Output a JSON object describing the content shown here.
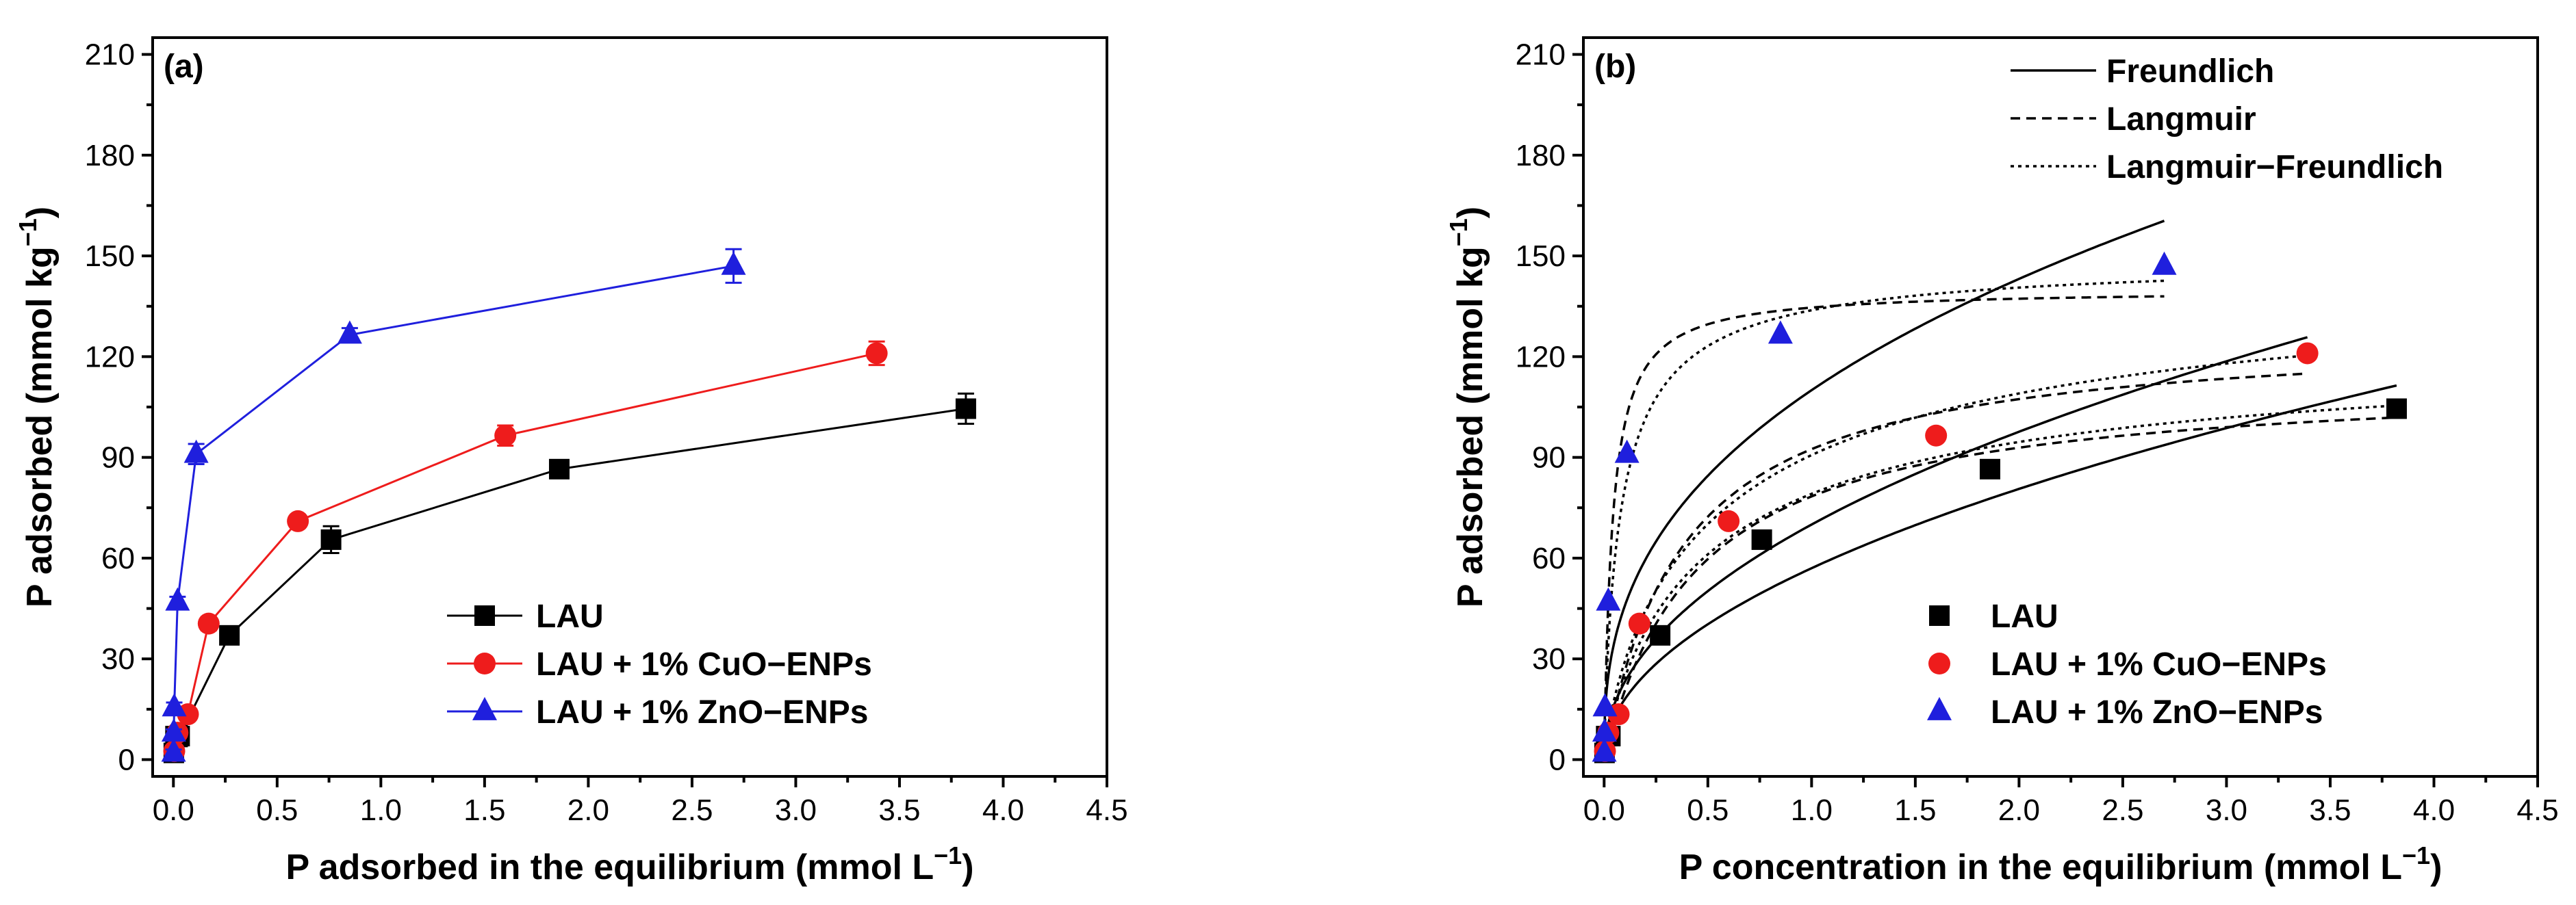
{
  "colors": {
    "LAU": "#000000",
    "CuO": "#ee1c1c",
    "ZnO": "#1f1fdd"
  },
  "chart_data": [
    {
      "type": "line",
      "panel_label": "(a)",
      "xlabel": "P adsorbed in the equilibrium (mmol L",
      "xlabel_sup": "−1",
      "xlabel_end": ")",
      "ylabel": "P adsorbed (mmol kg",
      "ylabel_sup": "−1",
      "ylabel_end": ")",
      "xlim": [
        -0.1,
        4.5
      ],
      "ylim": [
        -5,
        215
      ],
      "xticks": [
        "0.0",
        "0.5",
        "1.0",
        "1.5",
        "2.0",
        "2.5",
        "3.0",
        "3.5",
        "4.0",
        "4.5"
      ],
      "yticks": [
        "0",
        "30",
        "60",
        "90",
        "120",
        "150",
        "180",
        "210"
      ],
      "legend_position": "bottom-right",
      "series": [
        {
          "name": "LAU",
          "key": "LAU",
          "marker": "square",
          "x": [
            0.002,
            0.01,
            0.03,
            0.27,
            0.76,
            1.86,
            3.82
          ],
          "y": [
            2,
            7,
            7,
            37,
            65.5,
            86.5,
            104.5
          ],
          "err": [
            1,
            1.5,
            3,
            2,
            4,
            2.5,
            4.5
          ]
        },
        {
          "name": "LAU + 1% CuO−ENPs",
          "key": "CuO",
          "marker": "circle",
          "x": [
            0.004,
            0.02,
            0.07,
            0.17,
            0.6,
            1.6,
            3.39
          ],
          "y": [
            2.5,
            8,
            13.5,
            40.5,
            71,
            96.5,
            121
          ],
          "err": [
            1,
            1.5,
            1.5,
            2,
            1.5,
            3,
            3.5
          ]
        },
        {
          "name": "LAU + 1% ZnO−ENPs",
          "key": "ZnO",
          "marker": "triangle",
          "x": [
            0.001,
            0.002,
            0.004,
            0.02,
            0.11,
            0.85,
            2.7
          ],
          "y": [
            2,
            8,
            15.5,
            47,
            91,
            126.5,
            147
          ],
          "err": [
            1,
            1,
            1.5,
            1.5,
            3,
            2,
            5
          ]
        }
      ]
    },
    {
      "type": "scatter",
      "panel_label": "(b)",
      "xlabel": "P concentration in the equilibrium (mmol L",
      "xlabel_sup": "−1",
      "xlabel_end": ")",
      "ylabel": "P adsorbed (mmol kg",
      "ylabel_sup": "−1",
      "ylabel_end": ")",
      "xlim": [
        -0.1,
        4.5
      ],
      "ylim": [
        -5,
        215
      ],
      "xticks": [
        "0.0",
        "0.5",
        "1.0",
        "1.5",
        "2.0",
        "2.5",
        "3.0",
        "3.5",
        "4.0",
        "4.5"
      ],
      "yticks": [
        "0",
        "30",
        "60",
        "90",
        "120",
        "150",
        "180",
        "210"
      ],
      "legend_position": "bottom-right",
      "fit_legend_position": "top-right",
      "series": [
        {
          "name": "LAU",
          "key": "LAU",
          "marker": "square",
          "x": [
            0.002,
            0.01,
            0.03,
            0.27,
            0.76,
            1.86,
            3.82
          ],
          "y": [
            2,
            7,
            7,
            37,
            65.5,
            86.5,
            104.5
          ]
        },
        {
          "name": "LAU + 1% CuO−ENPs",
          "key": "CuO",
          "marker": "circle",
          "x": [
            0.004,
            0.02,
            0.07,
            0.17,
            0.6,
            1.6,
            3.39
          ],
          "y": [
            2.5,
            8,
            13.5,
            40.5,
            71,
            96.5,
            121
          ]
        },
        {
          "name": "LAU + 1% ZnO−ENPs",
          "key": "ZnO",
          "marker": "triangle",
          "x": [
            0.001,
            0.002,
            0.004,
            0.02,
            0.11,
            0.85,
            2.7
          ],
          "y": [
            2,
            8,
            15.5,
            47,
            91,
            126.5,
            147
          ]
        }
      ],
      "fit_models": [
        {
          "name": "Freundlich",
          "dash": "solid"
        },
        {
          "name": "Langmuir",
          "dash": "dashed"
        },
        {
          "name": "Langmuir−Freundlich",
          "dash": "dotted"
        }
      ],
      "fits": [
        {
          "model": "Freundlich",
          "series": "LAU",
          "kind": "F",
          "K": 57,
          "n": 0.5,
          "xmax": 3.82
        },
        {
          "model": "Freundlich",
          "series": "CuO",
          "kind": "F",
          "K": 70,
          "n": 0.48,
          "xmax": 3.39
        },
        {
          "model": "Freundlich",
          "series": "ZnO",
          "kind": "F",
          "K": 110,
          "n": 0.38,
          "xmax": 2.7
        },
        {
          "model": "Langmuir",
          "series": "LAU",
          "kind": "L",
          "qmax": 114,
          "KL": 2.2,
          "xmax": 3.82
        },
        {
          "model": "Langmuir",
          "series": "CuO",
          "kind": "L",
          "qmax": 128,
          "KL": 2.6,
          "xmax": 3.39
        },
        {
          "model": "Langmuir",
          "series": "ZnO",
          "kind": "L",
          "qmax": 140,
          "KL": 25,
          "xmax": 2.7
        },
        {
          "model": "Langmuir−Freundlich",
          "series": "LAU",
          "kind": "LF",
          "qmax": 125,
          "K": 1.9,
          "n": 0.85,
          "xmax": 3.82
        },
        {
          "model": "Langmuir−Freundlich",
          "series": "CuO",
          "kind": "LF",
          "qmax": 150,
          "K": 1.7,
          "n": 0.8,
          "xmax": 3.39
        },
        {
          "model": "Langmuir−Freundlich",
          "series": "ZnO",
          "kind": "LF",
          "qmax": 150,
          "K": 12,
          "n": 0.85,
          "xmax": 2.7
        }
      ]
    }
  ]
}
